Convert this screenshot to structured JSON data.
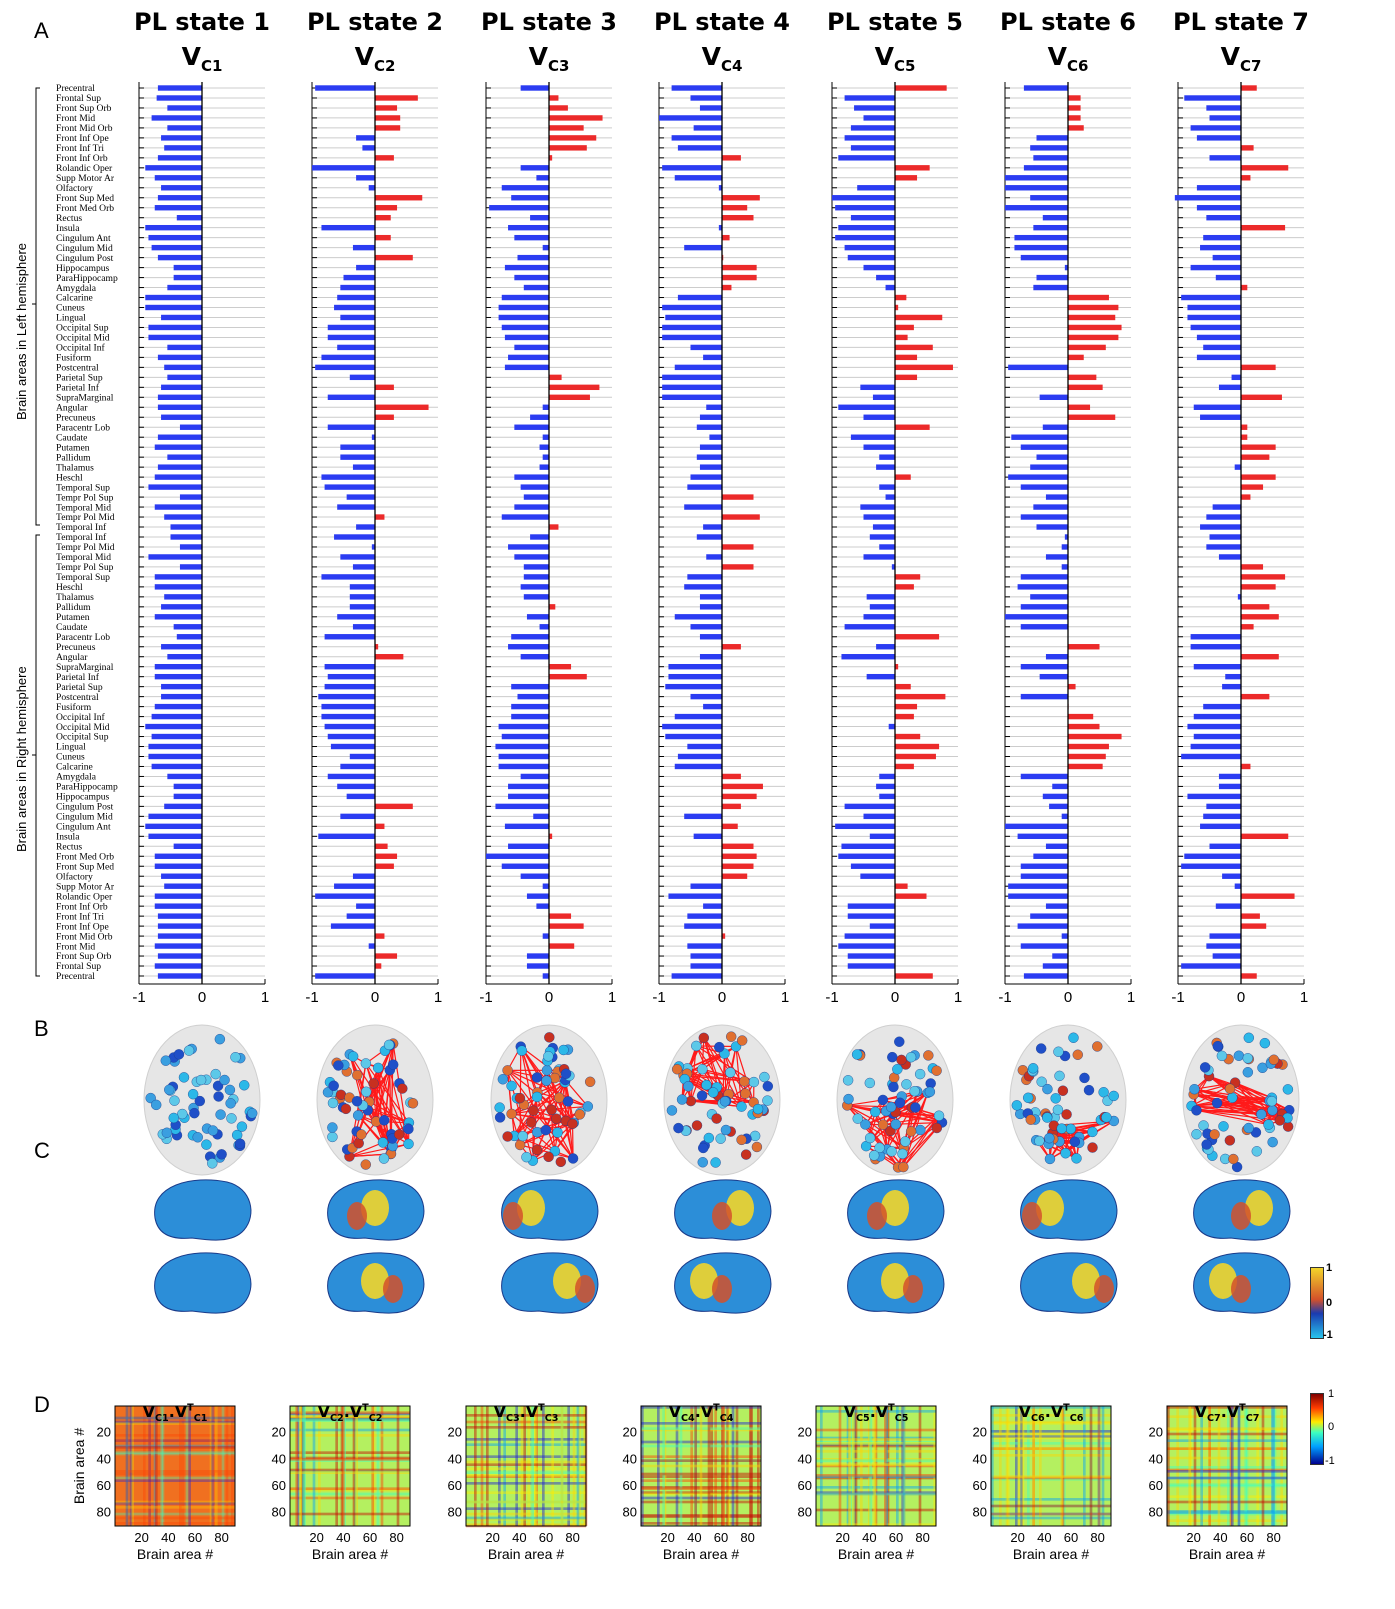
{
  "panel_letters": [
    "A",
    "B",
    "C",
    "D"
  ],
  "states": [
    {
      "title": "PL state 1",
      "vec": "V",
      "sub": "C1"
    },
    {
      "title": "PL state 2",
      "vec": "V",
      "sub": "C2"
    },
    {
      "title": "PL state 3",
      "vec": "V",
      "sub": "C3"
    },
    {
      "title": "PL state 4",
      "vec": "V",
      "sub": "C4"
    },
    {
      "title": "PL state 5",
      "vec": "V",
      "sub": "C5"
    },
    {
      "title": "PL state 6",
      "vec": "V",
      "sub": "C6"
    },
    {
      "title": "PL state 7",
      "vec": "V",
      "sub": "C7"
    }
  ],
  "hemisphere_labels": {
    "left": "Brain areas in Left hemisphere",
    "right": "Brain areas in Right hemisphere"
  },
  "colorbar_c": {
    "ticks": [
      "1",
      "0",
      "-1"
    ],
    "colors": [
      "#f2d52a",
      "#d4512a",
      "#1a3bb0",
      "#28c4ec"
    ]
  },
  "colorbar_d": {
    "ticks": [
      "1",
      "0",
      "-1"
    ],
    "colors": [
      "#7f0000",
      "#ff3c00",
      "#ffeb00",
      "#3dffc0",
      "#00a0ff",
      "#00008f"
    ]
  },
  "colors": {
    "positive": "#ec2a2a",
    "negative": "#2b3cf2",
    "gridline": "#cccccc"
  },
  "chart_data": [
    {
      "type": "bar",
      "orientation": "horizontal",
      "description_axis": "x",
      "xlim": [
        -1,
        1
      ],
      "xticks": [
        "-1",
        "0",
        "1"
      ],
      "categories": [
        "Precentral",
        "Frontal Sup",
        "Front Sup Orb",
        "Front Mid",
        "Front Mid Orb",
        "Front Inf Ope",
        "Front Inf Tri",
        "Front Inf Orb",
        "Rolandic Oper",
        "Supp Motor Ar",
        "Olfactory",
        "Front Sup Med",
        "Front Med Orb",
        "Rectus",
        "Insula",
        "Cingulum Ant",
        "Cingulum Mid",
        "Cingulum Post",
        "Hippocampus",
        "ParaHippocamp",
        "Amygdala",
        "Calcarine",
        "Cuneus",
        "Lingual",
        "Occipital Sup",
        "Occipital Mid",
        "Occipital Inf",
        "Fusiform",
        "Postcentral",
        "Parietal Sup",
        "Parietal Inf",
        "SupraMarginal",
        "Angular",
        "Precuneus",
        "Paracentr Lob",
        "Caudate",
        "Putamen",
        "Pallidum",
        "Thalamus",
        "Heschl",
        "Temporal Sup",
        "Tempr Pol Sup",
        "Temporal Mid",
        "Tempr Pol Mid",
        "Temporal Inf",
        "Temporal Inf",
        "Tempr Pol Mid",
        "Temporal Mid",
        "Tempr Pol Sup",
        "Temporal Sup",
        "Heschl",
        "Thalamus",
        "Pallidum",
        "Putamen",
        "Caudate",
        "Paracentr Lob",
        "Precuneus",
        "Angular",
        "SupraMarginal",
        "Parietal Inf",
        "Parietal Sup",
        "Postcentral",
        "Fusiform",
        "Occipital Inf",
        "Occipital Mid",
        "Occipital Sup",
        "Lingual",
        "Cuneus",
        "Calcarine",
        "Amygdala",
        "ParaHippocamp",
        "Hippocampus",
        "Cingulum Post",
        "Cingulum Mid",
        "Cingulum Ant",
        "Insula",
        "Rectus",
        "Front Med Orb",
        "Front Sup Med",
        "Olfactory",
        "Supp Motor Ar",
        "Rolandic Oper",
        "Front Inf Orb",
        "Front Inf Tri",
        "Front Inf Ope",
        "Front Mid Orb",
        "Front Mid",
        "Front Sup Orb",
        "Frontal Sup",
        "Precentral"
      ],
      "series": [
        {
          "values": [
            -0.7,
            -0.72,
            -0.55,
            -0.8,
            -0.55,
            -0.65,
            -0.6,
            -0.7,
            -0.9,
            -0.75,
            -0.65,
            -0.7,
            -0.75,
            -0.4,
            -0.9,
            -0.85,
            -0.8,
            -0.7,
            -0.45,
            -0.45,
            -0.55,
            -0.9,
            -0.9,
            -0.65,
            -0.85,
            -0.85,
            -0.55,
            -0.7,
            -0.6,
            -0.55,
            -0.65,
            -0.7,
            -0.7,
            -0.65,
            -0.35,
            -0.7,
            -0.75,
            -0.55,
            -0.7,
            -0.75,
            -0.85,
            -0.35,
            -0.75,
            -0.6,
            -0.5,
            -0.5,
            -0.35,
            -0.85,
            -0.35,
            -0.75,
            -0.75,
            -0.6,
            -0.65,
            -0.75,
            -0.45,
            -0.4,
            -0.65,
            -0.55,
            -0.75,
            -0.75,
            -0.65,
            -0.65,
            -0.75,
            -0.8,
            -0.9,
            -0.8,
            -0.85,
            -0.85,
            -0.8,
            -0.55,
            -0.45,
            -0.45,
            -0.6,
            -0.85,
            -0.9,
            -0.85,
            -0.45,
            -0.75,
            -0.75,
            -0.65,
            -0.6,
            -0.75,
            -0.75,
            -0.7,
            -0.7,
            -0.7,
            -0.75,
            -0.7,
            -0.75,
            -0.7
          ]
        },
        {
          "values": [
            -0.95,
            0.68,
            0.35,
            0.4,
            0.4,
            -0.3,
            -0.2,
            0.3,
            -1.0,
            -0.3,
            -0.1,
            0.75,
            0.35,
            0.25,
            -0.85,
            0.25,
            -0.35,
            0.6,
            -0.3,
            -0.5,
            -0.55,
            -0.6,
            -0.65,
            -0.55,
            -0.75,
            -0.75,
            -0.6,
            -0.85,
            -0.95,
            -0.4,
            0.3,
            -0.75,
            0.85,
            0.3,
            -0.75,
            -0.05,
            -0.55,
            -0.55,
            -0.35,
            -0.85,
            -0.8,
            -0.45,
            -0.6,
            0.15,
            -0.3,
            -0.65,
            -0.05,
            -0.55,
            -0.35,
            -0.85,
            -0.4,
            -0.4,
            -0.4,
            -0.6,
            -0.35,
            -0.8,
            0.05,
            0.45,
            -0.8,
            -0.75,
            -0.8,
            -0.9,
            -0.85,
            -0.85,
            -0.8,
            -0.75,
            -0.7,
            -0.4,
            -0.55,
            -0.75,
            -0.6,
            -0.45,
            0.6,
            -0.55,
            0.15,
            -0.9,
            0.2,
            0.35,
            0.3,
            -0.35,
            -0.65,
            -0.95,
            -0.3,
            -0.45,
            -0.7,
            0.15,
            -0.1,
            0.35,
            0.1,
            -0.95
          ]
        },
        {
          "values": [
            -0.45,
            0.15,
            0.3,
            0.85,
            0.55,
            0.75,
            0.6,
            0.05,
            -0.45,
            -0.2,
            -0.75,
            -0.6,
            -0.95,
            -0.3,
            -0.65,
            -0.55,
            -0.1,
            -0.5,
            -0.7,
            -0.55,
            -0.4,
            -0.75,
            -0.8,
            -0.8,
            -0.75,
            -0.7,
            -0.55,
            -0.65,
            -0.7,
            0.2,
            0.8,
            0.65,
            -0.1,
            -0.3,
            -0.55,
            -0.1,
            -0.15,
            -0.1,
            -0.15,
            -0.55,
            -0.45,
            -0.4,
            -0.55,
            -0.75,
            0.15,
            -0.3,
            -0.65,
            -0.55,
            -0.4,
            -0.4,
            -0.45,
            -0.4,
            0.1,
            -0.35,
            -0.15,
            -0.6,
            -0.65,
            -0.45,
            0.35,
            0.6,
            -0.6,
            -0.5,
            -0.6,
            -0.6,
            -0.8,
            -0.75,
            -0.85,
            -0.8,
            -0.8,
            -0.45,
            -0.65,
            -0.65,
            -0.85,
            -0.25,
            -0.7,
            0.05,
            -0.65,
            -1.0,
            -0.75,
            -0.45,
            -0.1,
            -0.35,
            -0.2,
            0.35,
            0.55,
            -0.1,
            0.4,
            -0.35,
            -0.35,
            -0.1
          ]
        },
        {
          "values": [
            -0.8,
            -0.5,
            -0.35,
            -1.0,
            -0.45,
            -0.8,
            -0.7,
            0.3,
            -0.95,
            -0.75,
            -0.05,
            0.6,
            0.4,
            0.5,
            -0.05,
            0.12,
            -0.6,
            0.02,
            0.55,
            0.55,
            0.15,
            -0.7,
            -0.95,
            -0.9,
            -0.95,
            -0.95,
            -0.5,
            -0.3,
            -0.75,
            -0.95,
            -0.95,
            -0.95,
            -0.25,
            -0.35,
            -0.4,
            -0.2,
            -0.35,
            -0.4,
            -0.35,
            -0.5,
            -0.55,
            0.5,
            -0.6,
            0.6,
            -0.3,
            -0.4,
            0.5,
            -0.25,
            0.5,
            -0.55,
            -0.6,
            -0.35,
            -0.35,
            -0.75,
            -0.5,
            -0.35,
            0.3,
            -0.35,
            -0.85,
            -0.85,
            -0.9,
            -0.5,
            -0.3,
            -0.75,
            -0.95,
            -0.9,
            -0.55,
            -0.7,
            -0.75,
            0.3,
            0.65,
            0.55,
            0.3,
            -0.6,
            0.25,
            -0.45,
            0.5,
            0.55,
            0.5,
            0.4,
            -0.5,
            -0.85,
            -0.3,
            -0.55,
            -0.6,
            0.05,
            -0.55,
            -0.5,
            -0.5,
            -0.8
          ]
        },
        {
          "values": [
            0.82,
            -0.8,
            -0.65,
            -0.5,
            -0.7,
            -0.8,
            -0.7,
            -0.9,
            0.55,
            0.35,
            -0.6,
            -1.0,
            -0.95,
            -0.7,
            -0.9,
            -0.95,
            -0.8,
            -0.75,
            -0.5,
            -0.3,
            -0.15,
            0.18,
            0.05,
            0.75,
            0.3,
            0.2,
            0.6,
            0.35,
            0.92,
            0.35,
            -0.55,
            -0.35,
            -0.9,
            -0.5,
            0.55,
            -0.7,
            -0.5,
            -0.25,
            -0.3,
            0.25,
            -0.25,
            -0.15,
            -0.55,
            -0.5,
            -0.35,
            -0.4,
            -0.25,
            -0.5,
            -0.05,
            0.4,
            0.3,
            -0.45,
            -0.4,
            -0.5,
            -0.8,
            0.7,
            -0.3,
            -0.85,
            0.05,
            -0.45,
            0.25,
            0.8,
            0.35,
            0.3,
            -0.1,
            0.4,
            0.7,
            0.65,
            0.3,
            -0.25,
            -0.3,
            -0.25,
            -0.8,
            -0.5,
            -0.95,
            -0.4,
            -0.85,
            -0.9,
            -0.7,
            -0.55,
            0.2,
            0.5,
            -0.75,
            -0.75,
            -0.4,
            -0.8,
            -0.9,
            -0.75,
            -0.75,
            0.6
          ]
        },
        {
          "values": [
            -0.7,
            0.2,
            0.2,
            0.2,
            0.25,
            -0.5,
            -0.6,
            -0.55,
            -0.7,
            -1.0,
            -1.0,
            -0.6,
            -1.0,
            -0.4,
            -0.55,
            -0.85,
            -0.85,
            -0.75,
            -0.05,
            -0.5,
            -0.55,
            0.65,
            0.8,
            0.75,
            0.85,
            0.8,
            0.6,
            0.25,
            -0.95,
            0.45,
            0.55,
            -0.45,
            0.35,
            0.75,
            -0.4,
            -0.9,
            -0.75,
            -0.5,
            -0.6,
            -0.95,
            -0.75,
            -0.35,
            -0.55,
            -0.75,
            -0.5,
            -0.05,
            -0.1,
            -0.35,
            -0.1,
            -0.75,
            -0.8,
            -0.6,
            -0.75,
            -1.0,
            -0.75,
            0.0,
            0.5,
            -0.35,
            -0.75,
            -0.45,
            0.12,
            -0.75,
            0.01,
            0.4,
            0.5,
            0.85,
            0.65,
            0.6,
            0.55,
            -0.75,
            -0.25,
            -0.4,
            -0.3,
            -0.1,
            -1.0,
            -0.8,
            -0.35,
            -0.55,
            -0.75,
            -0.75,
            -0.95,
            -0.95,
            -0.35,
            -0.6,
            -0.8,
            -0.1,
            -0.75,
            -0.25,
            -0.4,
            -0.7
          ]
        },
        {
          "values": [
            0.25,
            -0.9,
            -0.55,
            -0.5,
            -0.8,
            -0.7,
            0.2,
            -0.5,
            0.75,
            0.15,
            -0.7,
            -1.05,
            -0.7,
            -0.55,
            0.7,
            -0.6,
            -0.65,
            -0.45,
            -0.8,
            -0.4,
            0.1,
            -0.95,
            -0.85,
            -0.85,
            -0.8,
            -0.7,
            -0.6,
            -0.7,
            0.55,
            -0.15,
            -0.35,
            0.65,
            -0.75,
            -0.65,
            0.1,
            0.1,
            0.55,
            0.45,
            -0.1,
            0.55,
            0.35,
            0.15,
            -0.45,
            -0.55,
            -0.65,
            -0.5,
            -0.55,
            -0.35,
            0.35,
            0.7,
            0.55,
            -0.05,
            0.45,
            0.6,
            0.2,
            -0.8,
            -0.8,
            0.6,
            -0.75,
            -0.25,
            -0.3,
            0.45,
            -0.6,
            -0.75,
            -0.85,
            -0.75,
            -0.8,
            -0.95,
            0.15,
            -0.35,
            -0.35,
            -0.85,
            -0.55,
            -0.6,
            -0.65,
            0.75,
            -0.5,
            -0.9,
            -0.95,
            -0.3,
            -0.1,
            0.85,
            -0.4,
            0.3,
            0.4,
            -0.5,
            -0.55,
            -0.45,
            -0.95,
            0.25
          ]
        }
      ]
    },
    {
      "type": "heatmap",
      "titles": [
        "V",
        "V",
        "V",
        "V",
        "V",
        "V",
        "V"
      ],
      "title_subs": [
        "C1",
        "C2",
        "C3",
        "C4",
        "C5",
        "C6",
        "C7"
      ],
      "title_sup": "T",
      "x_ticks": [
        20,
        40,
        60,
        80
      ],
      "y_ticks": [
        20,
        40,
        60,
        80
      ],
      "xlabel": "Brain area #",
      "ylabel": "Brain area #",
      "clim": [
        -1,
        1
      ],
      "dimension": 90
    }
  ]
}
